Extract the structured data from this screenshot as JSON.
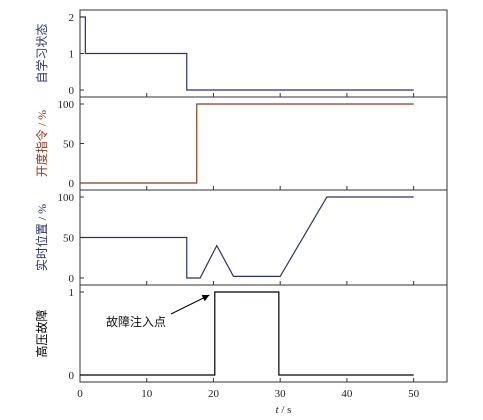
{
  "chart_data": [
    {
      "type": "line",
      "ylabel": "自学习状态",
      "color": "#2b3170",
      "ylim": [
        0,
        2
      ],
      "yticks": [
        0,
        1,
        2
      ],
      "xlim": [
        0,
        55
      ],
      "series": [
        {
          "x": [
            0,
            0.8,
            0.8,
            16,
            16,
            50
          ],
          "y": [
            2,
            2,
            1,
            1,
            0,
            0
          ]
        }
      ]
    },
    {
      "type": "line",
      "ylabel": "开度指令 / %",
      "color": "#8b3a1a",
      "ylim": [
        0,
        100
      ],
      "yticks": [
        0,
        50,
        100
      ],
      "xlim": [
        0,
        55
      ],
      "series": [
        {
          "x": [
            0,
            17.5,
            17.5,
            50
          ],
          "y": [
            0,
            0,
            100,
            100
          ]
        }
      ]
    },
    {
      "type": "line",
      "ylabel": "实时位置 / %",
      "color": "#2b3170",
      "ylim": [
        0,
        100
      ],
      "yticks": [
        0,
        50,
        100
      ],
      "xlim": [
        0,
        55
      ],
      "series": [
        {
          "x": [
            0,
            16,
            16,
            18,
            20.5,
            23,
            30,
            37,
            50
          ],
          "y": [
            50,
            50,
            0,
            0,
            40,
            2,
            2,
            100,
            100
          ]
        }
      ]
    },
    {
      "type": "line",
      "ylabel": "高压故障",
      "color": "#000000",
      "ylim": [
        0,
        1
      ],
      "yticks": [
        0,
        1
      ],
      "xlim": [
        0,
        55
      ],
      "xticks": [
        0,
        10,
        20,
        30,
        40,
        50
      ],
      "xlabel_t": "t",
      "xlabel_rest": " / s",
      "annotation": {
        "text": "故障注入点",
        "x": 20,
        "y": 1
      },
      "series": [
        {
          "x": [
            0,
            20.2,
            20.2,
            29.8,
            29.8,
            50
          ],
          "y": [
            0,
            0,
            1,
            1,
            0,
            0
          ]
        }
      ]
    }
  ]
}
